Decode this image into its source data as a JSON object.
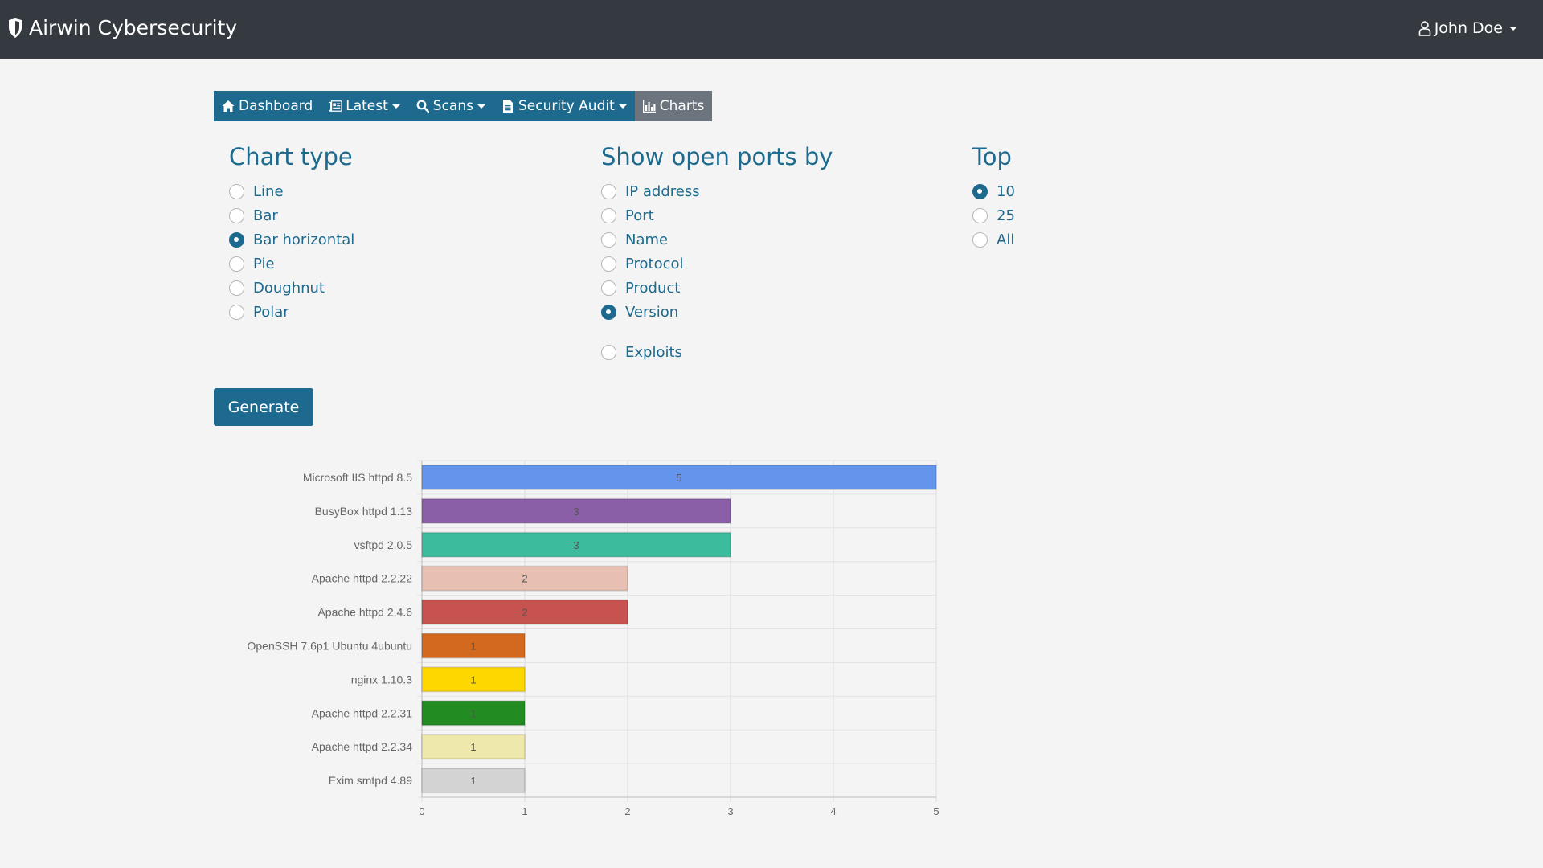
{
  "header": {
    "brand": "Airwin Cybersecurity",
    "user": "John Doe"
  },
  "nav": {
    "dashboard": "Dashboard",
    "latest": "Latest",
    "scans": "Scans",
    "security_audit": "Security Audit",
    "charts": "Charts"
  },
  "chart_type": {
    "title": "Chart type",
    "options": [
      "Line",
      "Bar",
      "Bar horizontal",
      "Pie",
      "Doughnut",
      "Polar"
    ],
    "selected": "Bar horizontal"
  },
  "ports_by": {
    "title": "Show open ports by",
    "options": [
      "IP address",
      "Port",
      "Name",
      "Protocol",
      "Product",
      "Version"
    ],
    "extra_option": "Exploits",
    "selected": "Version"
  },
  "top": {
    "title": "Top",
    "options": [
      "10",
      "25",
      "All"
    ],
    "selected": "10"
  },
  "generate_label": "Generate",
  "colors": {
    "accent": "#1d6a8e",
    "topbar": "#343a40",
    "active_tab": "#6c757d"
  },
  "chart_data": {
    "type": "bar",
    "orientation": "horizontal",
    "categories": [
      "Microsoft IIS httpd 8.5",
      "BusyBox httpd 1.13",
      "vsftpd 2.0.5",
      "Apache httpd 2.2.22",
      "Apache httpd 2.4.6",
      "OpenSSH 7.6p1 Ubuntu 4ubuntu",
      "nginx 1.10.3",
      "Apache httpd 2.2.31",
      "Apache httpd 2.2.34",
      "Exim smtpd 4.89"
    ],
    "values": [
      5,
      3,
      3,
      2,
      2,
      1,
      1,
      1,
      1,
      1
    ],
    "colors": [
      "#6495ed",
      "#8b5fa8",
      "#3dbb9d",
      "#e8bfb3",
      "#c75350",
      "#d2691e",
      "#ffd700",
      "#228b22",
      "#eee8aa",
      "#d3d3d3"
    ],
    "xlim": [
      0,
      5
    ],
    "xticks": [
      "0",
      "1",
      "2",
      "3",
      "4",
      "5"
    ],
    "grid": true
  }
}
